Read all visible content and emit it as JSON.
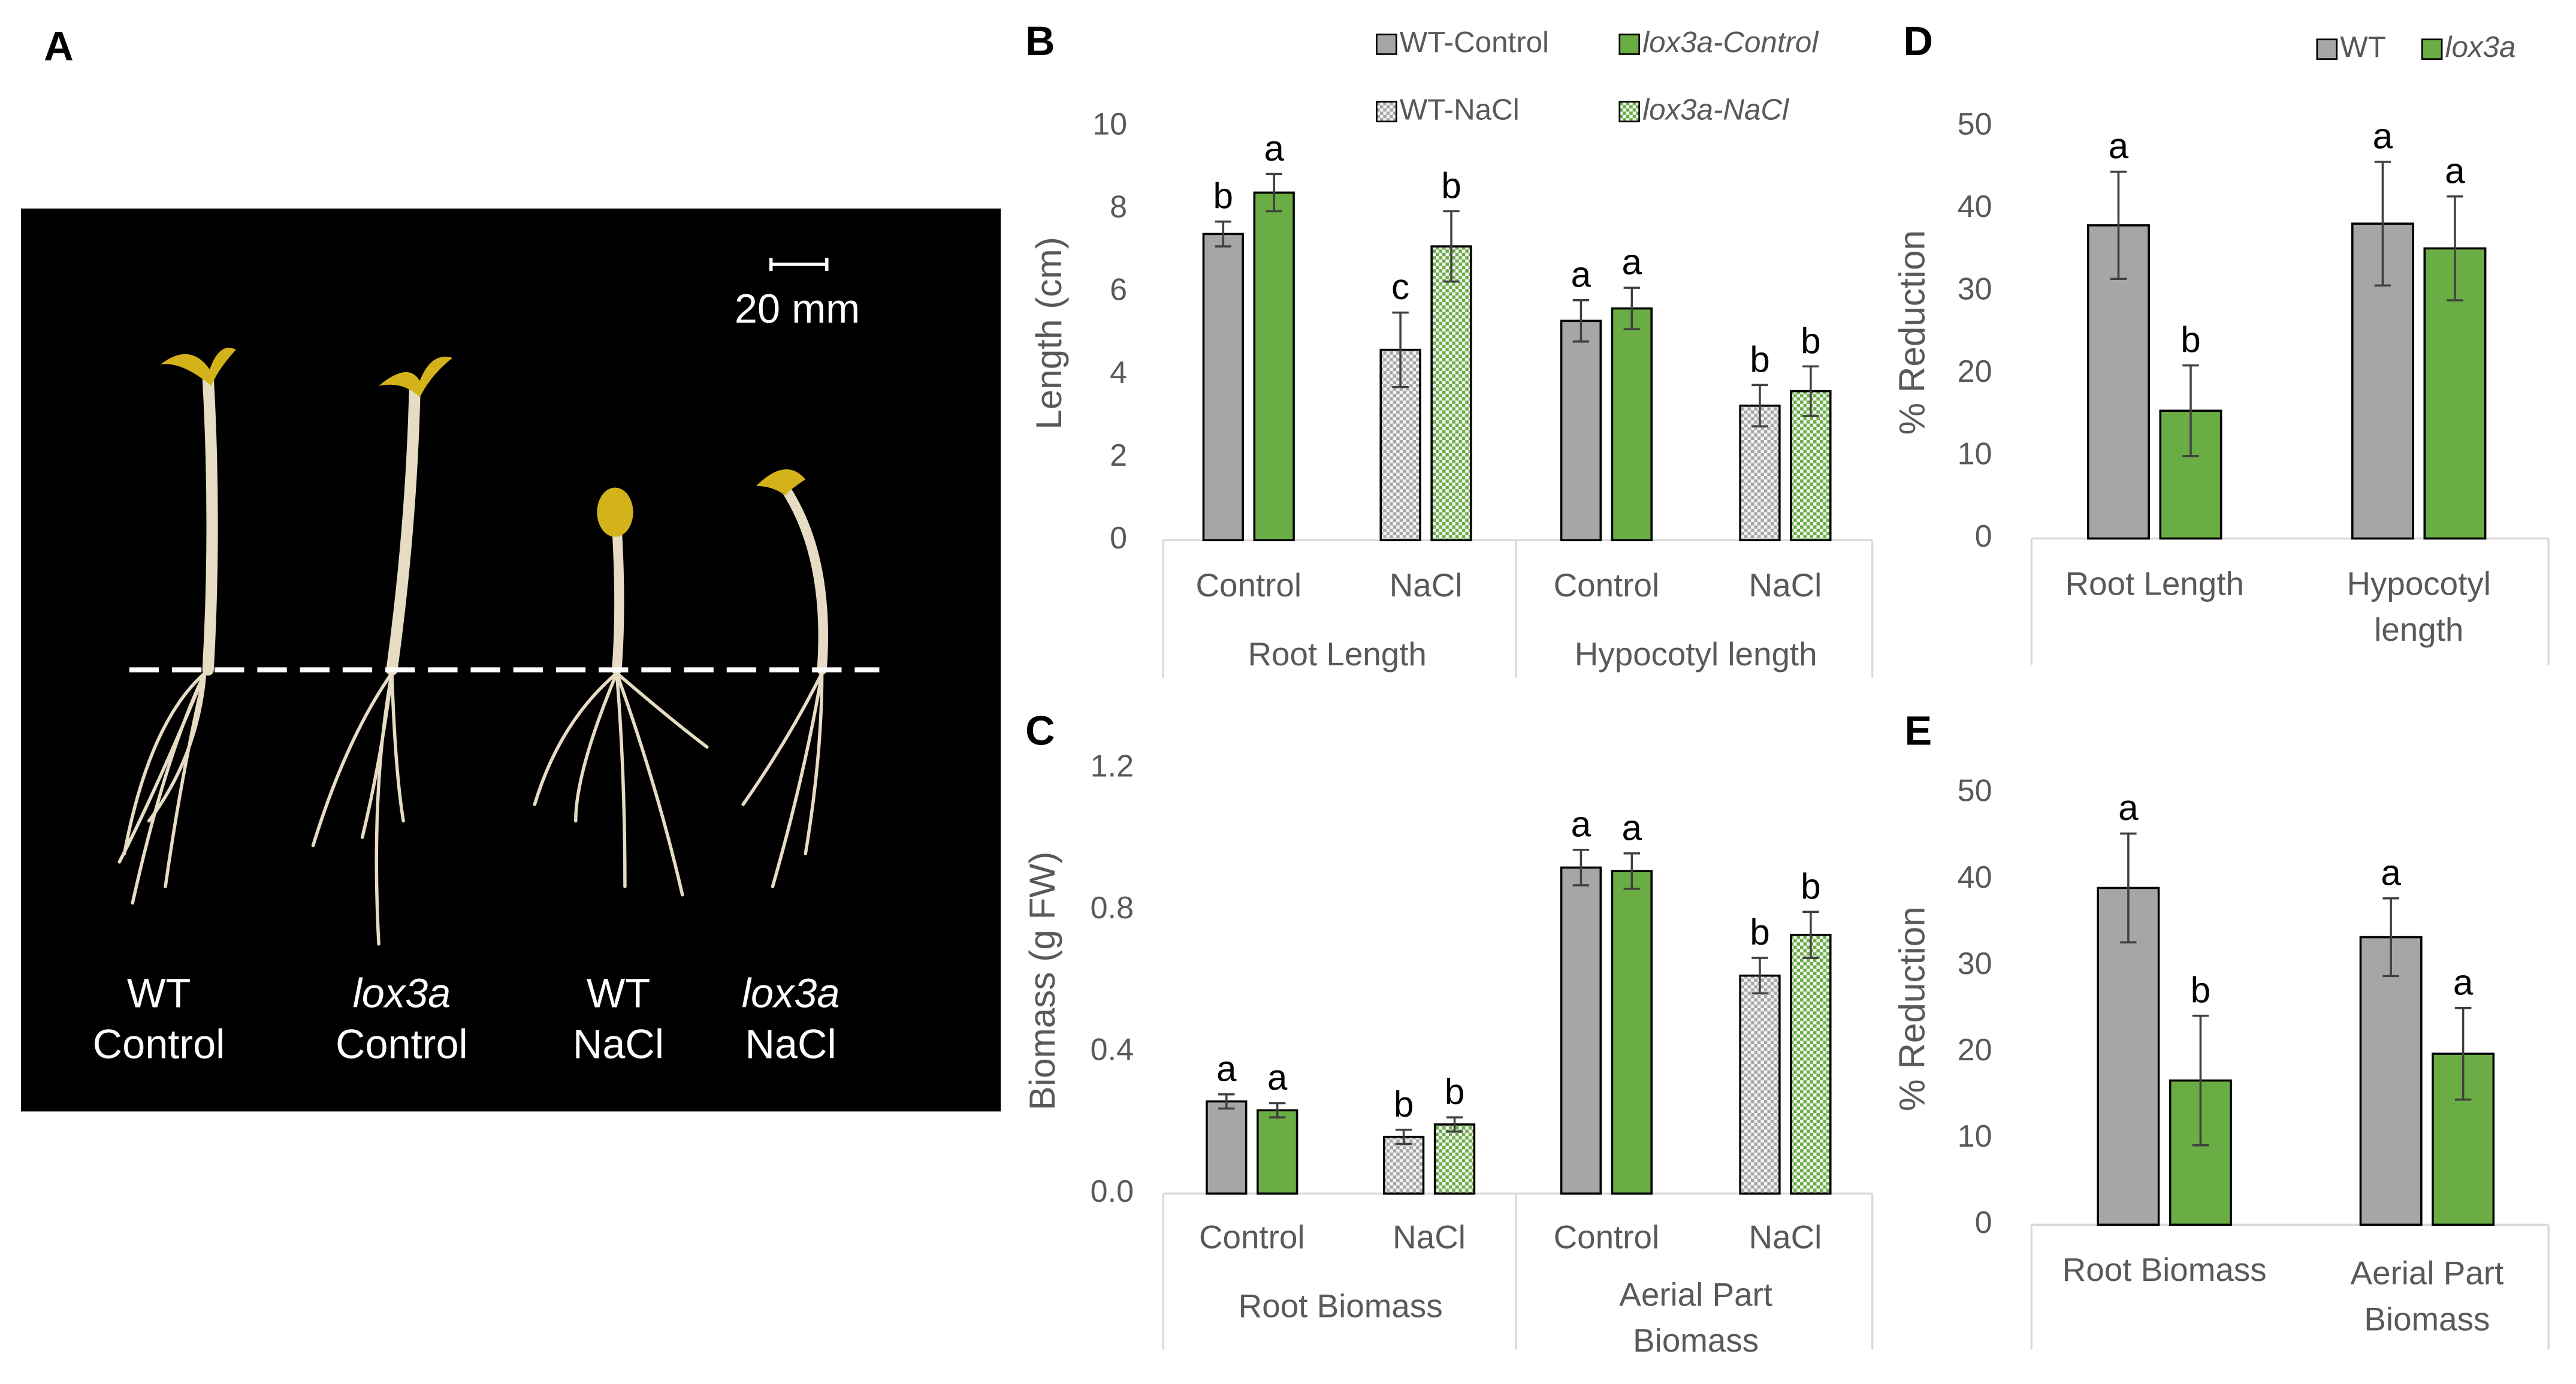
{
  "photo": {
    "panel_label": "A",
    "scale_bar": "20 mm",
    "labels": [
      {
        "lines": [
          "WT",
          "Control"
        ],
        "font_style": "normal"
      },
      {
        "lines": [
          "lox3a",
          "Control"
        ],
        "font_style": "italic"
      },
      {
        "lines": [
          "WT",
          "NaCl"
        ],
        "font_style": "normal"
      },
      {
        "lines": [
          "lox3a",
          "NaCl"
        ],
        "font_style": "italic"
      }
    ]
  },
  "chart_data": [
    {
      "type": "bar",
      "panel_label": "B",
      "ylabel": "Length (cm)",
      "categories": [
        [
          "Root Length"
        ],
        [
          "Hypocotyl length"
        ]
      ],
      "subcategories": [
        "Control",
        "NaCl",
        "Control",
        "NaCl"
      ],
      "ylim": [
        0,
        10
      ],
      "yticks": [
        0,
        2,
        4,
        6,
        8,
        10
      ],
      "legend": "top-right",
      "series": [
        {
          "name": "WT-Control",
          "color": "#a6a6a6",
          "pattern": "solid",
          "font_style": "normal",
          "values": [
            7.4,
            5.3
          ],
          "errors": [
            0.3,
            0.5
          ],
          "letters": [
            "b",
            "a"
          ]
        },
        {
          "name": "lox3a-Control",
          "color": "#6aad45",
          "pattern": "solid",
          "font_style": "italic",
          "values": [
            8.4,
            5.6
          ],
          "errors": [
            0.45,
            0.5
          ],
          "letters": [
            "a",
            "a"
          ]
        },
        {
          "name": "WT-NaCl",
          "color": "#a6a6a6",
          "pattern": "checked",
          "font_style": "normal",
          "values": [
            4.6,
            3.25
          ],
          "errors": [
            0.9,
            0.5
          ],
          "letters": [
            "c",
            "b"
          ]
        },
        {
          "name": "lox3a-NaCl",
          "color": "#6aad45",
          "pattern": "checked",
          "font_style": "italic",
          "values": [
            7.1,
            3.6
          ],
          "errors": [
            0.85,
            0.6
          ],
          "letters": [
            "b",
            "b"
          ]
        }
      ]
    },
    {
      "type": "bar",
      "panel_label": "C",
      "ylabel": "Biomass (g FW)",
      "categories": [
        [
          "Root Biomass"
        ],
        [
          "Aerial  Part",
          "Biomass"
        ]
      ],
      "subcategories": [
        "Control",
        "NaCl",
        "Control",
        "NaCl"
      ],
      "ylim": [
        0,
        1.2
      ],
      "yticks": [
        {
          "value": 0,
          "label": "0.0"
        },
        0.4,
        0.8,
        1.2
      ],
      "series": [
        {
          "color": "#a6a6a6",
          "pattern": "solid",
          "values": [
            0.26,
            0.92
          ],
          "errors": [
            0.02,
            0.05
          ],
          "letters": [
            "a",
            "a"
          ]
        },
        {
          "color": "#6aad45",
          "pattern": "solid",
          "values": [
            0.235,
            0.91
          ],
          "errors": [
            0.02,
            0.05
          ],
          "letters": [
            "a",
            "a"
          ]
        },
        {
          "color": "#a6a6a6",
          "pattern": "checked",
          "values": [
            0.16,
            0.615
          ],
          "errors": [
            0.02,
            0.05
          ],
          "letters": [
            "b",
            "b"
          ]
        },
        {
          "color": "#6aad45",
          "pattern": "checked",
          "values": [
            0.195,
            0.73
          ],
          "errors": [
            0.02,
            0.065
          ],
          "letters": [
            "b",
            "b"
          ]
        }
      ]
    },
    {
      "type": "bar",
      "panel_label": "D",
      "ylabel": "% Reduction",
      "categories": [
        [
          "Root Length"
        ],
        [
          "Hypocotyl",
          "length"
        ]
      ],
      "ylim": [
        0,
        50
      ],
      "yticks": [
        0,
        10,
        20,
        30,
        40,
        50
      ],
      "legend": "top-right",
      "series": [
        {
          "name": "WT",
          "color": "#a6a6a6",
          "pattern": "solid",
          "font_style": "normal",
          "values": [
            38,
            38.2
          ],
          "errors": [
            6.5,
            7.5
          ],
          "letters": [
            "a",
            "a"
          ]
        },
        {
          "name": "lox3a",
          "color": "#6aad45",
          "pattern": "solid",
          "font_style": "italic",
          "values": [
            15.5,
            35.2
          ],
          "errors": [
            5.5,
            6.3
          ],
          "letters": [
            "b",
            "a"
          ]
        }
      ]
    },
    {
      "type": "bar",
      "panel_label": "E",
      "ylabel": "% Reduction",
      "categories": [
        [
          "Root Biomass"
        ],
        [
          "Aerial  Part",
          "Biomass"
        ]
      ],
      "ylim": [
        0,
        50
      ],
      "yticks": [
        0,
        10,
        20,
        30,
        40,
        50
      ],
      "series": [
        {
          "color": "#a6a6a6",
          "pattern": "solid",
          "values": [
            39,
            33.3
          ],
          "errors": [
            6.3,
            4.5
          ],
          "letters": [
            "a",
            "a"
          ]
        },
        {
          "color": "#6aad45",
          "pattern": "solid",
          "values": [
            16.7,
            19.8
          ],
          "errors": [
            7.5,
            5.3
          ],
          "letters": [
            "b",
            "a"
          ]
        }
      ]
    }
  ]
}
